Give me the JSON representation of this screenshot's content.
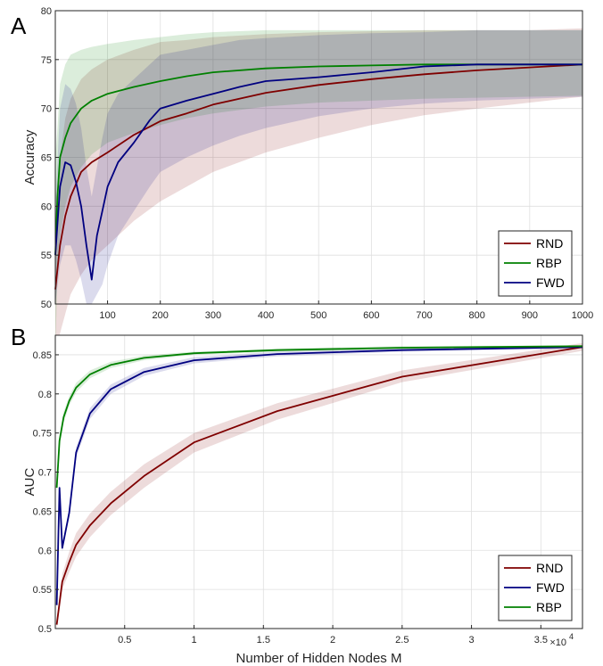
{
  "colors": {
    "RND": "#7f0000",
    "RBP": "#008000",
    "FWD": "#000080"
  },
  "chart_data": [
    {
      "panel": "A",
      "type": "line",
      "xlabel": "",
      "ylabel": "Accuracy",
      "xlim": [
        1,
        1000
      ],
      "ylim": [
        50,
        80
      ],
      "xticks": [
        100,
        200,
        300,
        400,
        500,
        600,
        700,
        800,
        900,
        1000
      ],
      "yticks": [
        50,
        55,
        60,
        65,
        70,
        75,
        80
      ],
      "grid": true,
      "legend": {
        "placement": "bottom-right",
        "entries": [
          "RND",
          "RBP",
          "FWD"
        ]
      },
      "series": [
        {
          "name": "RND",
          "band": true,
          "x": [
            1,
            10,
            20,
            30,
            50,
            70,
            100,
            150,
            200,
            250,
            300,
            400,
            500,
            600,
            700,
            800,
            900,
            1000
          ],
          "y": [
            51.5,
            56,
            59,
            61,
            63.5,
            64.5,
            65.5,
            67.3,
            68.7,
            69.5,
            70.4,
            71.6,
            72.4,
            73,
            73.5,
            73.9,
            74.2,
            74.5
          ],
          "lo": [
            44,
            47,
            49,
            51,
            53,
            54.5,
            56,
            58.5,
            60.5,
            62,
            63.5,
            65.5,
            67,
            68.3,
            69.3,
            70,
            70.6,
            71.2
          ],
          "hi": [
            59,
            65,
            69,
            71,
            73,
            74,
            75,
            76,
            76.8,
            77,
            77.3,
            77.6,
            77.8,
            77.9,
            78,
            78,
            78,
            78.2
          ]
        },
        {
          "name": "RBP",
          "band": true,
          "x": [
            1,
            5,
            10,
            20,
            30,
            50,
            70,
            100,
            150,
            200,
            250,
            300,
            400,
            500,
            600,
            700,
            800,
            900,
            1000
          ],
          "y": [
            55,
            61,
            65,
            67,
            68.5,
            70,
            70.8,
            71.5,
            72.2,
            72.8,
            73.3,
            73.7,
            74.1,
            74.3,
            74.4,
            74.5,
            74.5,
            74.5,
            74.5
          ],
          "lo": [
            45,
            53,
            57,
            60,
            62,
            64,
            65.3,
            66.5,
            67.5,
            68.3,
            69,
            69.5,
            70.2,
            70.6,
            70.8,
            71,
            71.1,
            71.2,
            71.3
          ],
          "hi": [
            65,
            68,
            72.5,
            74.5,
            75.5,
            76,
            76.3,
            76.6,
            77,
            77.3,
            77.6,
            77.8,
            78,
            78,
            78,
            78,
            78,
            78,
            78
          ]
        },
        {
          "name": "FWD",
          "band": true,
          "x": [
            1,
            10,
            20,
            30,
            40,
            50,
            60,
            70,
            80,
            90,
            100,
            120,
            150,
            180,
            200,
            250,
            300,
            350,
            400,
            500,
            600,
            700,
            800,
            900,
            1000
          ],
          "y": [
            55,
            62,
            64.5,
            64.2,
            62.5,
            60,
            56,
            52.5,
            57,
            59.5,
            62,
            64.5,
            66.5,
            68.8,
            70,
            70.8,
            71.5,
            72.2,
            72.8,
            73.2,
            73.7,
            74.3,
            74.5,
            74.5,
            74.5
          ],
          "lo": [
            50,
            54,
            56,
            56,
            54.5,
            52.5,
            50,
            50,
            51,
            52,
            54,
            57,
            59.5,
            62,
            63.5,
            65,
            66.2,
            67.2,
            68,
            69.2,
            70,
            70.5,
            70.8,
            71,
            71.2
          ],
          "hi": [
            60,
            70,
            72.5,
            72,
            70.5,
            68,
            64,
            61,
            64,
            67,
            69.5,
            71.5,
            73,
            74.5,
            75.5,
            76,
            76.5,
            77,
            77.2,
            77.5,
            77.7,
            77.8,
            78,
            78,
            78
          ]
        }
      ]
    },
    {
      "panel": "B",
      "type": "line",
      "xlabel": "Number of Hidden Nodes M",
      "ylabel": "AUC",
      "xlim": [
        0,
        38000
      ],
      "ylim": [
        0.5,
        0.875
      ],
      "xticks": [
        5000,
        10000,
        15000,
        20000,
        25000,
        30000,
        35000
      ],
      "xtick_labels": [
        "0.5",
        "1",
        "1.5",
        "2",
        "2.5",
        "3",
        "3.5"
      ],
      "x_multiplier": "×10",
      "x_multiplier_exp": "4",
      "yticks": [
        0.5,
        0.55,
        0.6,
        0.65,
        0.7,
        0.75,
        0.8,
        0.85
      ],
      "ytick_labels": [
        "0.5",
        "0.55",
        "0.6",
        "0.65",
        "0.7",
        "0.75",
        "0.8",
        "0.85"
      ],
      "grid": true,
      "legend": {
        "placement": "bottom-right",
        "entries": [
          "RND",
          "FWD",
          "RBP"
        ]
      },
      "series": [
        {
          "name": "RND",
          "band": true,
          "x": [
            100,
            500,
            1000,
            1500,
            2500,
            4000,
            6400,
            10000,
            16000,
            25000,
            38000
          ],
          "y": [
            0.505,
            0.56,
            0.585,
            0.607,
            0.632,
            0.66,
            0.695,
            0.738,
            0.778,
            0.822,
            0.86
          ],
          "lo": [
            0.498,
            0.55,
            0.572,
            0.592,
            0.617,
            0.645,
            0.68,
            0.725,
            0.767,
            0.815,
            0.855
          ],
          "hi": [
            0.512,
            0.57,
            0.598,
            0.622,
            0.647,
            0.675,
            0.71,
            0.75,
            0.788,
            0.83,
            0.865
          ]
        },
        {
          "name": "FWD",
          "band": true,
          "x": [
            100,
            300,
            500,
            1000,
            1500,
            2500,
            4000,
            6400,
            10000,
            16000,
            25000,
            38000
          ],
          "y": [
            0.53,
            0.68,
            0.603,
            0.648,
            0.725,
            0.775,
            0.806,
            0.828,
            0.843,
            0.851,
            0.856,
            0.86
          ],
          "lo": [
            0.525,
            0.672,
            0.598,
            0.642,
            0.718,
            0.768,
            0.8,
            0.823,
            0.839,
            0.848,
            0.854,
            0.858
          ],
          "hi": [
            0.535,
            0.688,
            0.608,
            0.654,
            0.732,
            0.782,
            0.812,
            0.833,
            0.847,
            0.854,
            0.858,
            0.862
          ]
        },
        {
          "name": "RBP",
          "band": true,
          "x": [
            100,
            300,
            600,
            1000,
            1500,
            2500,
            4000,
            6400,
            10000,
            16000,
            25000,
            38000
          ],
          "y": [
            0.68,
            0.74,
            0.77,
            0.791,
            0.808,
            0.825,
            0.837,
            0.846,
            0.852,
            0.856,
            0.859,
            0.861
          ],
          "lo": [
            0.673,
            0.733,
            0.763,
            0.785,
            0.802,
            0.82,
            0.833,
            0.843,
            0.85,
            0.854,
            0.857,
            0.86
          ],
          "hi": [
            0.687,
            0.747,
            0.777,
            0.797,
            0.814,
            0.83,
            0.841,
            0.849,
            0.854,
            0.858,
            0.861,
            0.862
          ]
        }
      ]
    }
  ]
}
